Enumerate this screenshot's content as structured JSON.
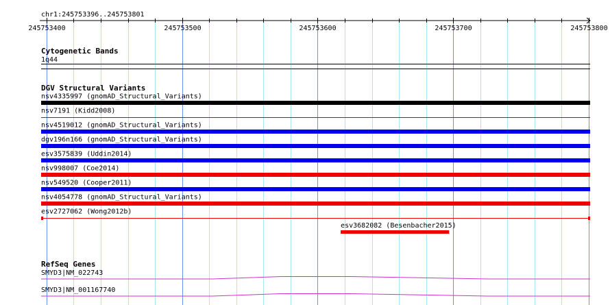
{
  "browser": {
    "locus": "chr1:245753396..245753801"
  },
  "ruler": {
    "ticks": [
      {
        "label": "245753400",
        "pos": 245753400
      },
      {
        "label": "245753500",
        "pos": 245753500
      },
      {
        "label": "245753600",
        "pos": 245753600
      },
      {
        "label": "245753700",
        "pos": 245753700
      },
      {
        "label": "245753800",
        "pos": 245753800
      }
    ]
  },
  "tracks": {
    "cytoband": {
      "title": "Cytogenetic Bands",
      "band": "1q44"
    },
    "dgv": {
      "title": "DGV Structural Variants",
      "features": [
        {
          "label": "nsv4335997 (gnomAD_Structural_Variants)",
          "color": "#000000",
          "style": "thick"
        },
        {
          "label": "nsv7191 (Kidd2008)",
          "color": "#3333aa",
          "style": "thin"
        },
        {
          "label": "nsv4519012 (gnomAD_Structural_Variants)",
          "color": "#0000ee",
          "style": "thick"
        },
        {
          "label": "dgv196n166 (gnomAD_Structural_Variants)",
          "color": "#0000ee",
          "style": "thick"
        },
        {
          "label": "esv3575839 (Uddin2014)",
          "color": "#0000ee",
          "style": "thick"
        },
        {
          "label": "nsv998007 (Coe2014)",
          "color": "#ee0000",
          "style": "thick"
        },
        {
          "label": "nsv549520 (Cooper2011)",
          "color": "#0000ee",
          "style": "thick"
        },
        {
          "label": "nsv4054778 (gnomAD_Structural_Variants)",
          "color": "#ee0000",
          "style": "thick"
        },
        {
          "label": "esv2727062 (Wong2012b)",
          "color": "#ee0000",
          "style": "thin-capped"
        }
      ],
      "extra_feature": {
        "label": "esv3682082 (Besenbacher2015)",
        "color": "#ee0000",
        "start": 245753617,
        "end": 245753697
      }
    },
    "refseq": {
      "title": "RefSeq Genes",
      "genes": [
        {
          "label": "SMYD3|NM_022743",
          "color": "#cc33cc"
        },
        {
          "label": "SMYD3|NM_001167740",
          "color": "#cc33cc"
        }
      ]
    }
  }
}
